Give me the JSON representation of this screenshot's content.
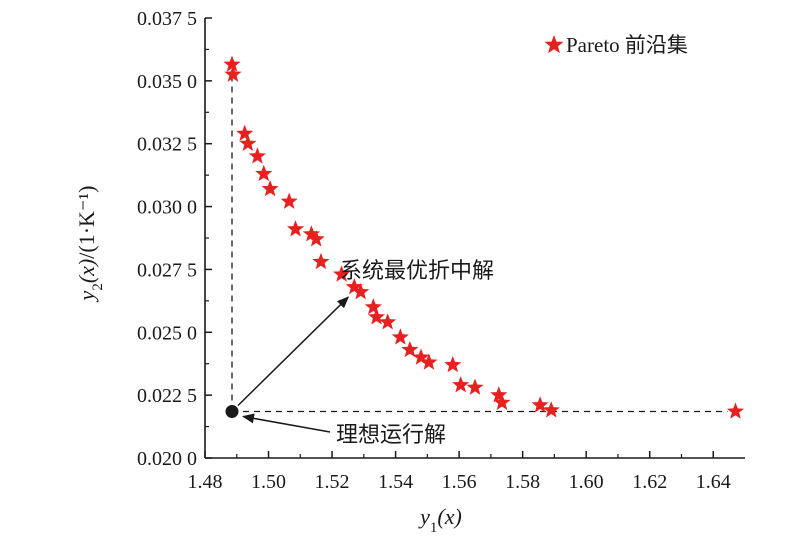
{
  "chart_data": {
    "type": "scatter",
    "xlabel": "y1(x)",
    "ylabel": "y2(x)/(1·K⁻¹)",
    "xlim": [
      1.48,
      1.65
    ],
    "ylim": [
      0.02,
      0.0375
    ],
    "xticks": [
      {
        "value": 1.48,
        "label": "1.48"
      },
      {
        "value": 1.5,
        "label": "1.50"
      },
      {
        "value": 1.52,
        "label": "1.52"
      },
      {
        "value": 1.54,
        "label": "1.54"
      },
      {
        "value": 1.56,
        "label": "1.56"
      },
      {
        "value": 1.58,
        "label": "1.58"
      },
      {
        "value": 1.6,
        "label": "1.60"
      },
      {
        "value": 1.62,
        "label": "1.62"
      },
      {
        "value": 1.64,
        "label": "1.64"
      }
    ],
    "yticks": [
      {
        "value": 0.02,
        "label": "0.020 0"
      },
      {
        "value": 0.0225,
        "label": "0.022 5"
      },
      {
        "value": 0.025,
        "label": "0.025 0"
      },
      {
        "value": 0.0275,
        "label": "0.027 5"
      },
      {
        "value": 0.03,
        "label": "0.030 0"
      },
      {
        "value": 0.0325,
        "label": "0.032 5"
      },
      {
        "value": 0.035,
        "label": "0.035 0"
      },
      {
        "value": 0.0375,
        "label": "0.037 5"
      }
    ],
    "legend_position": "top-right",
    "series": [
      {
        "name": "Pareto 前沿集",
        "color": "#e8201f",
        "marker": "star",
        "points": [
          [
            1.4885,
            0.03565
          ],
          [
            1.4888,
            0.03525
          ],
          [
            1.4925,
            0.0329
          ],
          [
            1.4935,
            0.0325
          ],
          [
            1.4965,
            0.032
          ],
          [
            1.4985,
            0.0313
          ],
          [
            1.5005,
            0.0307
          ],
          [
            1.5065,
            0.0302
          ],
          [
            1.5085,
            0.0291
          ],
          [
            1.5135,
            0.0289
          ],
          [
            1.515,
            0.0287
          ],
          [
            1.5165,
            0.0278
          ],
          [
            1.523,
            0.0273
          ],
          [
            1.527,
            0.0268
          ],
          [
            1.529,
            0.0266
          ],
          [
            1.533,
            0.026
          ],
          [
            1.534,
            0.0256
          ],
          [
            1.5375,
            0.0254
          ],
          [
            1.5415,
            0.0248
          ],
          [
            1.5445,
            0.0243
          ],
          [
            1.548,
            0.024
          ],
          [
            1.5505,
            0.0238
          ],
          [
            1.558,
            0.0237
          ],
          [
            1.5605,
            0.0229
          ],
          [
            1.565,
            0.0228
          ],
          [
            1.5725,
            0.0225
          ],
          [
            1.5735,
            0.0222
          ],
          [
            1.5855,
            0.0221
          ],
          [
            1.589,
            0.0219
          ],
          [
            1.647,
            0.02185
          ]
        ]
      }
    ],
    "ideal_point": {
      "x": 1.4885,
      "y": 0.02185,
      "label": "理想运行解"
    },
    "compromise_point": {
      "x": 1.527,
      "y": 0.0268,
      "label": "系统最优折中解"
    }
  }
}
